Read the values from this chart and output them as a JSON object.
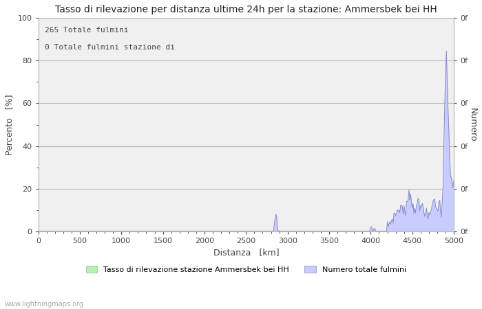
{
  "title": "Tasso di rilevazione per distanza ultime 24h per la stazione: Ammersbek bei HH",
  "xlabel": "Distanza   [km]",
  "ylabel_left": "Percento   [%]",
  "ylabel_right": "Numero",
  "annotation_line1": "265 Totale fulmini",
  "annotation_line2": "0 Totale fulmini stazione di",
  "legend_label1": "Tasso di rilevazione stazione Ammersbek bei HH",
  "legend_label2": "Numero totale fulmini",
  "watermark": "www.lightningmaps.org",
  "xlim": [
    0,
    5000
  ],
  "ylim_left": [
    0,
    100
  ],
  "xticks": [
    0,
    500,
    1000,
    1500,
    2000,
    2500,
    3000,
    3500,
    4000,
    4500,
    5000
  ],
  "yticks_left": [
    0,
    20,
    40,
    60,
    80,
    100
  ],
  "right_axis_tick_labels": [
    "0f",
    "0f",
    "0f",
    "0f",
    "0f",
    "0f"
  ],
  "background_color": "#ffffff",
  "plot_bg_color": "#f0f0f0",
  "grid_color": "#b8b8b8",
  "fill_color_blue": "#c8ccff",
  "fill_color_green": "#b8f0b8",
  "line_color_blue": "#8888cc",
  "line_color_green": "#88bb88",
  "title_fontsize": 10,
  "tick_fontsize": 8,
  "label_fontsize": 9
}
